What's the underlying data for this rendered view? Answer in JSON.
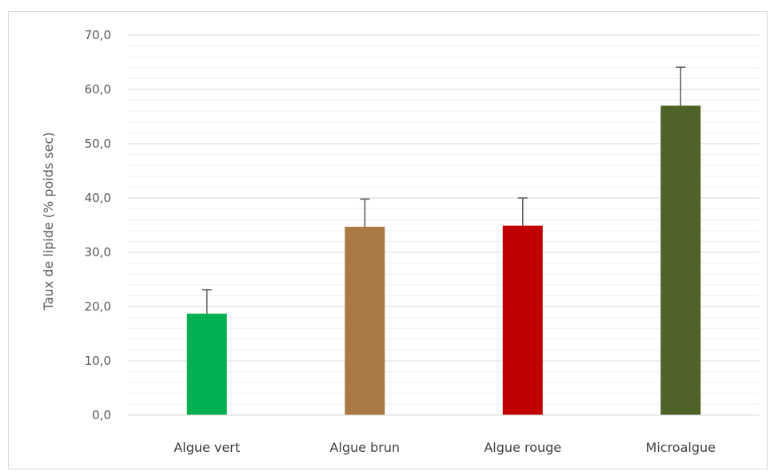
{
  "chart_data": {
    "type": "bar",
    "categories": [
      "Algue vert",
      "Algue brun",
      "Algue rouge",
      "Microalgue"
    ],
    "values": [
      18.7,
      34.7,
      34.9,
      57.0
    ],
    "error_plus": [
      4.4,
      5.1,
      5.1,
      7.1
    ],
    "colors": [
      "#00b050",
      "#a97a43",
      "#c00000",
      "#4f6228"
    ],
    "ylabel": "Taux de lipide (% poids sec)",
    "xlabel": "",
    "ylim": [
      0,
      70
    ],
    "y_ticks": [
      "0,0",
      "10,0",
      "20,0",
      "30,0",
      "40,0",
      "50,0",
      "60,0",
      "70,0"
    ],
    "grid": true,
    "minor_grid": true,
    "legend": "none"
  }
}
